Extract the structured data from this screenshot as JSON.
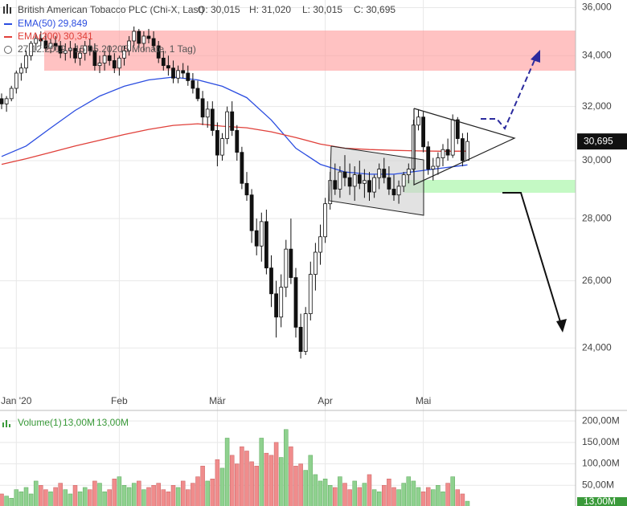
{
  "chart_data": [
    {
      "type": "candlestick",
      "title": "British American Tobacco PLC (Chi-X, Last)",
      "ohlc_labels": [
        "O: 30,015",
        "H: 31,020",
        "L: 30,015",
        "C: 30,695"
      ],
      "period": "27.12.2019 - 15.05.2020",
      "period_note": "(5 Monate, 1 Tag)",
      "last_price_label": "30,695",
      "log_scale": true,
      "grid": true,
      "up_color": "#ffffff",
      "down_color": "#111111",
      "ylim": [
        22300,
        36330
      ],
      "yticks": [
        {
          "value": 24000,
          "label": "24,000"
        },
        {
          "value": 26000,
          "label": "26,000"
        },
        {
          "value": 28000,
          "label": "28,000"
        },
        {
          "value": 30000,
          "label": "30,000"
        },
        {
          "value": 32000,
          "label": "32,000"
        },
        {
          "value": 34000,
          "label": "34,000"
        },
        {
          "value": 36000,
          "label": "36,000"
        }
      ],
      "categories": [
        null,
        null,
        null,
        "Jan '20",
        null,
        null,
        null,
        null,
        null,
        null,
        null,
        null,
        null,
        null,
        null,
        null,
        null,
        null,
        null,
        null,
        null,
        null,
        null,
        null,
        "Feb",
        null,
        null,
        null,
        null,
        null,
        null,
        null,
        null,
        null,
        null,
        null,
        null,
        null,
        null,
        null,
        null,
        null,
        null,
        null,
        "Mär",
        null,
        null,
        null,
        null,
        null,
        null,
        null,
        null,
        null,
        null,
        null,
        null,
        null,
        null,
        null,
        null,
        null,
        null,
        null,
        null,
        null,
        "Apr",
        null,
        null,
        null,
        null,
        null,
        null,
        null,
        null,
        null,
        null,
        null,
        null,
        null,
        null,
        null,
        null,
        null,
        null,
        null,
        "Mai",
        null,
        null,
        null,
        null,
        null,
        null,
        null,
        null,
        null
      ],
      "open": [
        32300,
        32100,
        32300,
        32700,
        33300,
        33500,
        34000,
        34500,
        34700,
        34600,
        34300,
        34500,
        34400,
        34100,
        34200,
        34300,
        33900,
        34100,
        34400,
        34200,
        33600,
        33700,
        34000,
        33800,
        33500,
        33900,
        34200,
        34600,
        35000,
        34500,
        34800,
        34700,
        34400,
        33900,
        33600,
        33500,
        33100,
        33400,
        33300,
        33000,
        32700,
        32300,
        31600,
        31900,
        31100,
        30200,
        30800,
        31800,
        31100,
        30300,
        29200,
        28800,
        27600,
        27100,
        27900,
        26400,
        25600,
        24900,
        25800,
        27000,
        26100,
        24600,
        23900,
        25000,
        26200,
        26900,
        27400,
        28500,
        29300,
        29000,
        29600,
        29400,
        29100,
        29500,
        29200,
        29300,
        28900,
        29400,
        29700,
        29400,
        29000,
        28800,
        29100,
        29500,
        29700,
        31300,
        31600,
        30500,
        29700,
        29800,
        30100,
        30400,
        30200,
        31500,
        30800,
        30015
      ],
      "high": [
        32500,
        32400,
        32800,
        33400,
        33700,
        34200,
        34600,
        34900,
        35000,
        34900,
        34700,
        34800,
        34600,
        34500,
        34600,
        34500,
        34300,
        34600,
        34700,
        34500,
        34000,
        34200,
        34400,
        34100,
        34000,
        34400,
        34800,
        35200,
        35100,
        35000,
        35100,
        35000,
        34600,
        34200,
        34000,
        33800,
        33600,
        33700,
        33600,
        33300,
        33000,
        32600,
        32200,
        32200,
        31400,
        31000,
        32000,
        32200,
        31300,
        30500,
        29600,
        29000,
        28000,
        28200,
        28300,
        26800,
        26000,
        26200,
        27300,
        28000,
        26400,
        25000,
        25200,
        26600,
        27200,
        27800,
        28700,
        29600,
        29900,
        29800,
        30200,
        29900,
        29800,
        30000,
        29700,
        29600,
        29500,
        29900,
        30100,
        29800,
        29500,
        29300,
        29600,
        29900,
        31500,
        31900,
        31800,
        30700,
        30100,
        30300,
        30600,
        30800,
        31700,
        31600,
        31000,
        31020
      ],
      "low": [
        31900,
        31800,
        32200,
        32500,
        33000,
        33300,
        33800,
        34200,
        34400,
        34200,
        34100,
        34200,
        33900,
        33800,
        33900,
        33700,
        33600,
        33800,
        34000,
        33400,
        33300,
        33400,
        33600,
        33300,
        33200,
        33600,
        34000,
        34400,
        34300,
        34200,
        34500,
        34200,
        33700,
        33400,
        33200,
        32900,
        32900,
        33100,
        32800,
        32500,
        32200,
        31300,
        31200,
        30900,
        29800,
        30000,
        30600,
        30900,
        30000,
        29000,
        28600,
        27200,
        26800,
        26600,
        26200,
        25200,
        24300,
        24600,
        25500,
        25900,
        24300,
        23700,
        23800,
        24800,
        25700,
        26500,
        27200,
        28300,
        28800,
        28700,
        29100,
        28800,
        28600,
        29000,
        28700,
        28600,
        28700,
        29000,
        29200,
        28800,
        28600,
        28500,
        28900,
        29200,
        29600,
        31100,
        30300,
        29500,
        29300,
        29500,
        29800,
        30000,
        30100,
        30600,
        29800,
        30015
      ],
      "close": [
        32100,
        32300,
        32700,
        33300,
        33500,
        34000,
        34500,
        34700,
        34600,
        34300,
        34500,
        34400,
        34100,
        34200,
        34300,
        33900,
        34100,
        34400,
        34200,
        33600,
        33700,
        34000,
        33800,
        33500,
        33900,
        34200,
        34600,
        35000,
        34500,
        34800,
        34700,
        34400,
        33900,
        33600,
        33500,
        33100,
        33400,
        33300,
        33000,
        32700,
        32300,
        31600,
        31900,
        31100,
        30200,
        30800,
        31800,
        31100,
        30300,
        29200,
        28800,
        27600,
        27100,
        27900,
        26400,
        25600,
        24900,
        25800,
        27000,
        26100,
        24600,
        23900,
        25000,
        26200,
        26900,
        27400,
        28500,
        29300,
        29000,
        29600,
        29400,
        29100,
        29500,
        29200,
        29300,
        28900,
        29400,
        29700,
        29400,
        29000,
        28800,
        29100,
        29500,
        29700,
        31300,
        31600,
        30500,
        29700,
        29800,
        30100,
        30400,
        30200,
        31500,
        30800,
        30000,
        30695
      ],
      "series": [
        {
          "name": "EMA(50)",
          "color": "#2b4de0",
          "value_label": "29,849",
          "x": [
            0,
            5,
            10,
            15,
            20,
            25,
            30,
            35,
            40,
            45,
            50,
            55,
            60,
            65,
            70,
            75,
            80,
            85,
            90,
            95
          ],
          "values": [
            30150,
            30530,
            31190,
            31850,
            32400,
            32780,
            33030,
            33140,
            33030,
            32780,
            32340,
            31490,
            30450,
            29870,
            29600,
            29520,
            29520,
            29630,
            29740,
            29849
          ]
        },
        {
          "name": "EMA(200)",
          "color": "#e0403a",
          "value_label": "30,341",
          "x": [
            0,
            5,
            10,
            15,
            20,
            25,
            30,
            35,
            40,
            45,
            50,
            55,
            60,
            65,
            70,
            75,
            80,
            85,
            90,
            95
          ],
          "values": [
            29870,
            30070,
            30300,
            30530,
            30740,
            30950,
            31140,
            31290,
            31350,
            31260,
            31200,
            31050,
            30840,
            30600,
            30450,
            30400,
            30370,
            30350,
            30340,
            30341
          ]
        }
      ]
    },
    {
      "type": "bar",
      "title": "Volume(1)",
      "legend_values": [
        "13,00M",
        "13,00M"
      ],
      "current_label": "13,00M",
      "grid": true,
      "up_color": "#8fd18f",
      "down_color": "#f08c8c",
      "ylim": [
        0,
        217
      ],
      "yticks": [
        {
          "value": 50,
          "label": "50,00M"
        },
        {
          "value": 100,
          "label": "100,00M"
        },
        {
          "value": 150,
          "label": "150,00M"
        },
        {
          "value": 200,
          "label": "200,00M"
        }
      ],
      "values": [
        30,
        25,
        20,
        40,
        35,
        45,
        30,
        60,
        50,
        40,
        35,
        45,
        55,
        40,
        30,
        50,
        35,
        45,
        40,
        60,
        55,
        35,
        40,
        65,
        70,
        50,
        45,
        55,
        60,
        40,
        45,
        50,
        55,
        40,
        35,
        50,
        45,
        60,
        40,
        55,
        70,
        95,
        60,
        65,
        110,
        90,
        160,
        120,
        100,
        140,
        130,
        105,
        95,
        160,
        125,
        120,
        150,
        115,
        180,
        140,
        95,
        100,
        85,
        120,
        75,
        60,
        65,
        50,
        45,
        70,
        55,
        40,
        60,
        45,
        55,
        75,
        40,
        35,
        50,
        65,
        45,
        40,
        55,
        70,
        60,
        45,
        35,
        45,
        40,
        50,
        35,
        55,
        70,
        40,
        30,
        13
      ]
    }
  ]
}
